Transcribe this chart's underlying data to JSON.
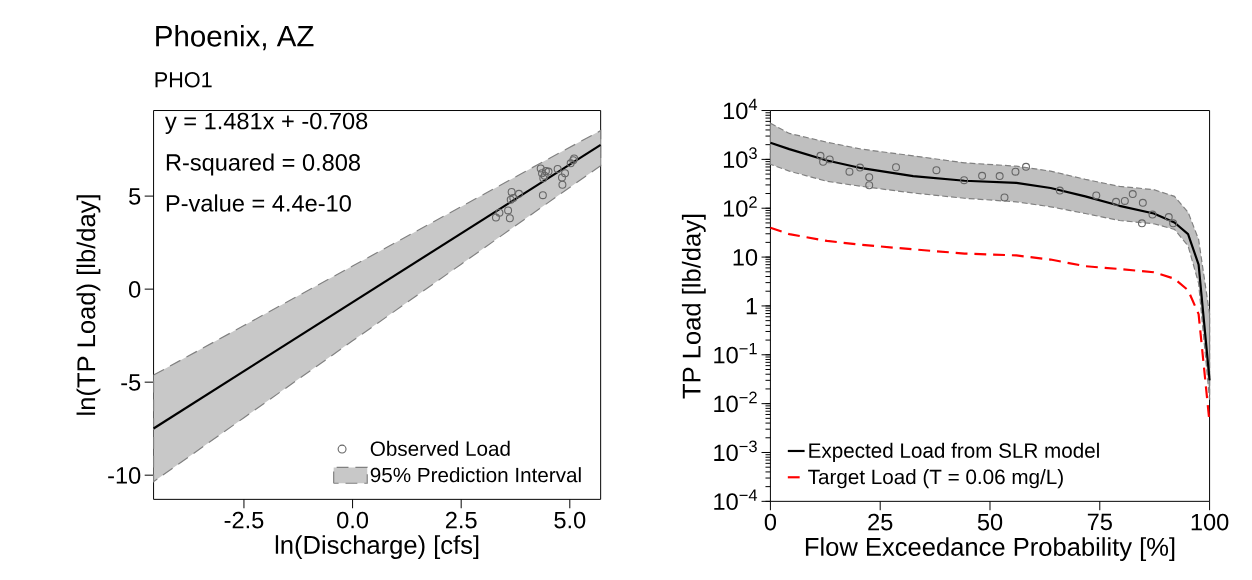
{
  "chart_data": [
    {
      "type": "scatter",
      "title": "Phoenix, AZ",
      "subtitle": "PHO1",
      "xlabel": "ln(Discharge) [cfs]",
      "ylabel": "ln(TP Load) [lb/day]",
      "annotations": [
        "y = 1.481x + -0.708",
        "R-squared = 0.808",
        "P-value = 4.4e-10"
      ],
      "xlim": [
        -4.58,
        5.71
      ],
      "ylim": [
        -11.3,
        9.6
      ],
      "xticks": [
        -2.5,
        {
          "value": 0,
          "label": "0.0"
        },
        2.5,
        {
          "value": 5,
          "label": "5.0"
        }
      ],
      "yticks": [
        -10,
        -5,
        0,
        5
      ],
      "legend": "bottom right",
      "series": [
        {
          "name": "Observed Load",
          "color": "#666666",
          "marker": "circle",
          "x": [
            3.3,
            3.38,
            3.58,
            3.62,
            3.64,
            3.66,
            3.7,
            3.83,
            4.33,
            4.36,
            4.39,
            4.42,
            4.45,
            4.51,
            4.38,
            4.72,
            4.82,
            4.83,
            4.89,
            5.02,
            5.08,
            5.1
          ],
          "values": [
            3.85,
            4.11,
            4.23,
            3.81,
            4.81,
            5.22,
            4.9,
            5.12,
            6.49,
            6.23,
            5.96,
            6.1,
            6.35,
            6.32,
            5.05,
            6.46,
            6.0,
            5.61,
            6.23,
            6.76,
            6.93,
            7.02
          ]
        },
        {
          "type": "area",
          "name": "95% Prediction Interval",
          "color": "#c8c8c8",
          "line_style": "dashed",
          "x": [
            -4.58,
            -2.5,
            0,
            2.5,
            4.3,
            5.71
          ],
          "values": [
            null,
            null,
            null,
            null,
            null,
            null
          ],
          "lower": [
            -10.35,
            -6.91,
            -2.78,
            1.34,
            4.32,
            6.63
          ],
          "upper": [
            -4.62,
            -1.96,
            1.24,
            4.43,
            6.74,
            8.52
          ]
        },
        {
          "type": "line",
          "color": "#000000",
          "x": [
            -4.58,
            5.71
          ],
          "values": [
            -7.49,
            7.75
          ]
        }
      ]
    },
    {
      "type": "line",
      "xlabel": "Flow Exceedance Probability [%]",
      "ylabel": "TP Load [lb/day]",
      "xlim": [
        0,
        100
      ],
      "ylim": [
        0.0001,
        10000
      ],
      "log": "y",
      "xticks": [
        0,
        25,
        50,
        75,
        100
      ],
      "yticks": [
        {
          "value": 0.0001,
          "label": "10$^{−4}$"
        },
        {
          "value": 0.001,
          "label": "10$^{−3}$"
        },
        {
          "value": 0.01,
          "label": "10$^{−2}$"
        },
        {
          "value": 0.1,
          "label": "10$^{−1}$"
        },
        1,
        10,
        {
          "value": 100,
          "label": "10$^{2}$"
        },
        {
          "value": 1000,
          "label": "10$^{3}$"
        },
        {
          "value": 10000,
          "label": "10$^{4}$"
        }
      ],
      "legend": "bottom left",
      "x": [
        0,
        4.3,
        12.9,
        20.8,
        32.5,
        44.2,
        56,
        63.8,
        71.7,
        79.5,
        87.3,
        92,
        95.1,
        97.5,
        100
      ],
      "series": [
        {
          "name": "Expected Load from SLR model",
          "color": "#000000",
          "line_style": "solid",
          "values": [
            2180,
            1620,
            950,
            660,
            455,
            365,
            330,
            260,
            175,
            112,
            78,
            51,
            29.5,
            7,
            0.03
          ],
          "lower": [
            795,
            575,
            355,
            280,
            205,
            160,
            135,
            107,
            78,
            56,
            48,
            37,
            17,
            2.9,
            0.012
          ],
          "upper": [
            5500,
            3400,
            2240,
            1620,
            1180,
            850,
            725,
            575,
            390,
            280,
            240,
            175,
            83,
            23,
            0.68
          ]
        },
        {
          "name": "Target Load (T = 0.06 mg/L)",
          "color": "#ff0000",
          "line_style": "dashed",
          "values": [
            40,
            29.5,
            21.4,
            17.8,
            14.4,
            11.8,
            10.8,
            8.9,
            6.5,
            5.7,
            4.9,
            3.6,
            2.1,
            0.68,
            0.004
          ]
        },
        {
          "type": "scatter",
          "color": "#666666",
          "marker": "circle",
          "x": [
            11.4,
            12.0,
            13.5,
            18.0,
            20.4,
            22.5,
            22.5,
            28.6,
            37.8,
            44.1,
            48.2,
            52.2,
            53.3,
            55.8,
            58.2,
            65.9,
            74.2,
            78.7,
            80.7,
            82.5,
            84.8,
            84.6,
            87.0,
            90.7,
            91.7
          ],
          "values": [
            1180,
            890,
            1000,
            560,
            680,
            430,
            295,
            690,
            600,
            375,
            460,
            455,
            166,
            560,
            705,
            230,
            183,
            135,
            141,
            195,
            129,
            49,
            74,
            66,
            49
          ]
        }
      ]
    }
  ]
}
